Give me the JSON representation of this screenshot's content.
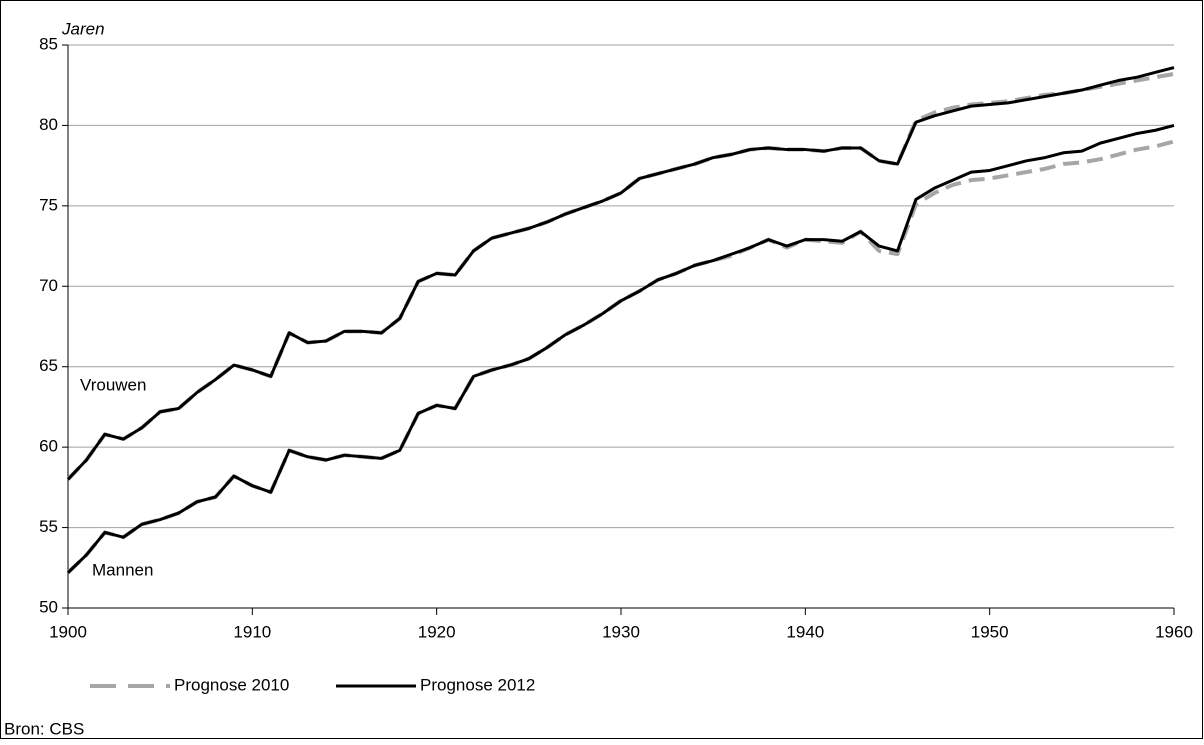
{
  "chart_data": {
    "type": "line",
    "y_label": "Jaren",
    "source": "Bron: CBS",
    "annotations": [
      "Vrouwen",
      "Mannen"
    ],
    "xlim": [
      1900,
      1960
    ],
    "xticks": [
      1900,
      1910,
      1920,
      1930,
      1940,
      1950,
      1960
    ],
    "ylim": [
      50,
      85
    ],
    "yticks": [
      50,
      55,
      60,
      65,
      70,
      75,
      80,
      85
    ],
    "grid": true,
    "legend": "bottom",
    "x": [
      1900,
      1901,
      1902,
      1903,
      1904,
      1905,
      1906,
      1907,
      1908,
      1909,
      1910,
      1911,
      1912,
      1913,
      1914,
      1915,
      1916,
      1917,
      1918,
      1919,
      1920,
      1921,
      1922,
      1923,
      1924,
      1925,
      1926,
      1927,
      1928,
      1929,
      1930,
      1931,
      1932,
      1933,
      1934,
      1935,
      1936,
      1937,
      1938,
      1939,
      1940,
      1941,
      1942,
      1943,
      1944,
      1945,
      1946,
      1947,
      1948,
      1949,
      1950,
      1951,
      1952,
      1953,
      1954,
      1955,
      1956,
      1957,
      1958,
      1959,
      1960
    ],
    "series": [
      {
        "name": "Prognose 2010",
        "color": "#a6a6a6",
        "dashed": true,
        "lines": [
          {
            "values": [
              58.0,
              59.2,
              60.8,
              60.5,
              61.2,
              62.2,
              62.4,
              63.4,
              64.2,
              65.1,
              64.8,
              64.4,
              67.1,
              66.5,
              66.6,
              67.2,
              67.2,
              67.1,
              68.0,
              70.3,
              70.8,
              70.7,
              72.2,
              73.0,
              73.3,
              73.6,
              74.0,
              74.5,
              74.9,
              75.3,
              75.8,
              76.7,
              77.0,
              77.3,
              77.6,
              78.0,
              78.2,
              78.5,
              78.6,
              78.5,
              78.5,
              78.4,
              78.6,
              78.6,
              77.8,
              77.6,
              80.3,
              80.8,
              81.1,
              81.3,
              81.4,
              81.5,
              81.7,
              81.9,
              82.0,
              82.2,
              82.4,
              82.6,
              82.8,
              83.0,
              83.2
            ]
          },
          {
            "values": [
              52.2,
              53.3,
              54.7,
              54.4,
              55.2,
              55.5,
              55.9,
              56.6,
              56.9,
              58.2,
              57.6,
              57.2,
              59.8,
              59.4,
              59.2,
              59.5,
              59.4,
              59.3,
              59.8,
              62.1,
              62.6,
              62.4,
              64.4,
              64.8,
              65.1,
              65.5,
              66.2,
              67.0,
              67.6,
              68.3,
              69.1,
              69.7,
              70.4,
              70.8,
              71.3,
              71.6,
              71.9,
              72.4,
              72.9,
              72.4,
              72.9,
              72.8,
              72.7,
              73.4,
              72.2,
              72.0,
              75.1,
              75.8,
              76.3,
              76.6,
              76.7,
              76.9,
              77.1,
              77.3,
              77.6,
              77.7,
              77.9,
              78.2,
              78.5,
              78.7,
              79.0
            ]
          }
        ]
      },
      {
        "name": "Prognose 2012",
        "color": "#000000",
        "dashed": false,
        "lines": [
          {
            "values": [
              58.0,
              59.2,
              60.8,
              60.5,
              61.2,
              62.2,
              62.4,
              63.4,
              64.2,
              65.1,
              64.8,
              64.4,
              67.1,
              66.5,
              66.6,
              67.2,
              67.2,
              67.1,
              68.0,
              70.3,
              70.8,
              70.7,
              72.2,
              73.0,
              73.3,
              73.6,
              74.0,
              74.5,
              74.9,
              75.3,
              75.8,
              76.7,
              77.0,
              77.3,
              77.6,
              78.0,
              78.2,
              78.5,
              78.6,
              78.5,
              78.5,
              78.4,
              78.6,
              78.6,
              77.8,
              77.6,
              80.2,
              80.6,
              80.9,
              81.2,
              81.3,
              81.4,
              81.6,
              81.8,
              82.0,
              82.2,
              82.5,
              82.8,
              83.0,
              83.3,
              83.6
            ]
          },
          {
            "values": [
              52.2,
              53.3,
              54.7,
              54.4,
              55.2,
              55.5,
              55.9,
              56.6,
              56.9,
              58.2,
              57.6,
              57.2,
              59.8,
              59.4,
              59.2,
              59.5,
              59.4,
              59.3,
              59.8,
              62.1,
              62.6,
              62.4,
              64.4,
              64.8,
              65.1,
              65.5,
              66.2,
              67.0,
              67.6,
              68.3,
              69.1,
              69.7,
              70.4,
              70.8,
              71.3,
              71.6,
              72.0,
              72.4,
              72.9,
              72.5,
              72.9,
              72.9,
              72.8,
              73.4,
              72.5,
              72.2,
              75.4,
              76.1,
              76.6,
              77.1,
              77.2,
              77.5,
              77.8,
              78.0,
              78.3,
              78.4,
              78.9,
              79.2,
              79.5,
              79.7,
              80.0
            ]
          }
        ]
      }
    ]
  }
}
